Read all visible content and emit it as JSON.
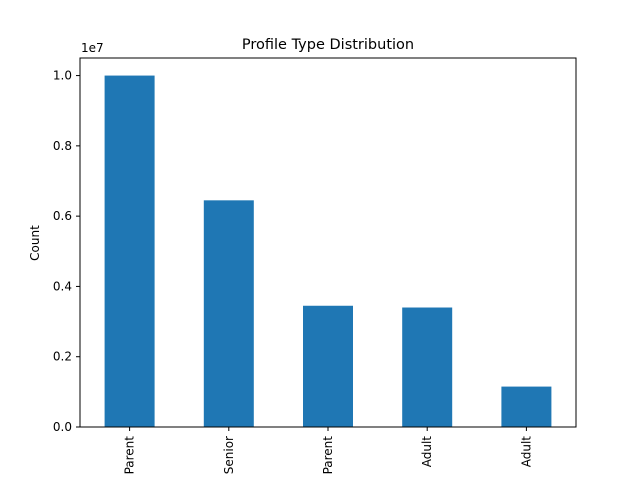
{
  "chart_data": {
    "type": "bar",
    "title": "Profile Type Distribution",
    "xlabel": "",
    "ylabel": "Count",
    "scale_label": "1e7",
    "categories": [
      "Parent",
      "Senior",
      "Parent",
      "Adult",
      "Adult"
    ],
    "values": [
      10000000,
      6450000,
      3450000,
      3400000,
      1150000
    ],
    "ylim": [
      0,
      10500000
    ],
    "y_ticks": [
      {
        "value": 0,
        "label": "0.0"
      },
      {
        "value": 2000000,
        "label": "0.2"
      },
      {
        "value": 4000000,
        "label": "0.4"
      },
      {
        "value": 6000000,
        "label": "0.6"
      },
      {
        "value": 8000000,
        "label": "0.8"
      },
      {
        "value": 10000000,
        "label": "1.0"
      }
    ],
    "bar_color": "#1f77b4",
    "grid": false,
    "legend": "none"
  }
}
